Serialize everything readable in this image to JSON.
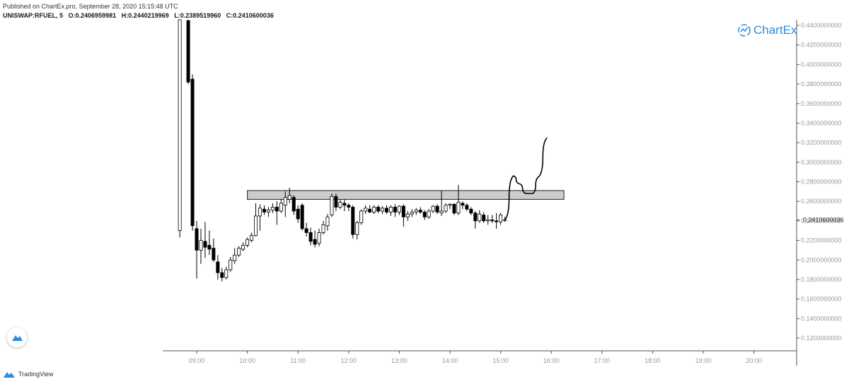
{
  "header": {
    "published": "Published on ChartEx.pro, September 28, 2020 15:15:48 UTC",
    "symbol": "UNISWAP:RFUEL, 5",
    "open_label": "O:",
    "open": "0.2406959981",
    "high_label": "H:",
    "high": "0.2440219969",
    "low_label": "L:",
    "low": "0.2389519960",
    "close_label": "C:",
    "close": "0.2410600036"
  },
  "brand": {
    "name": "ChartEx",
    "icon": "chartex-logo-icon"
  },
  "footer": {
    "tradingview": "TradingView",
    "icon": "tradingview-logo-icon"
  },
  "colors": {
    "up": "#ffffff",
    "down": "#000000",
    "wick": "#000000",
    "zone": "#cccccc",
    "arrow": "#000000",
    "axis_text": "#9598a1"
  },
  "chart_data": {
    "type": "candlestick",
    "symbol": "UNISWAP:RFUEL",
    "interval": "5",
    "price_scale": {
      "min": 0.11,
      "max": 0.45,
      "ticks": [
        0.12,
        0.14,
        0.16,
        0.18,
        0.2,
        0.22,
        0.24,
        0.26,
        0.28,
        0.3,
        0.32,
        0.34,
        0.36,
        0.38,
        0.4,
        0.42,
        0.44
      ],
      "tick_labels": [
        "0.1200000000",
        "0.1400000000",
        "0.1600000000",
        "0.1800000000",
        "0.2000000000",
        "0.2200000000",
        "0.2400000000",
        "0.2600000000",
        "0.2800000000",
        "0.3000000000",
        "0.3200000000",
        "0.3400000000",
        "0.3600000000",
        "0.3800000000",
        "0.4000000000",
        "0.4200000000",
        "0.4400000000"
      ]
    },
    "last_price_label": "0.2410600036",
    "last_price": 0.24106,
    "time_axis": {
      "labels": [
        "09:00",
        "10:00",
        "11:00",
        "12:00",
        "13:00",
        "14:00",
        "15:00",
        "16:00",
        "17:00",
        "18:00",
        "19:00",
        "20:00"
      ],
      "hours": [
        9,
        10,
        11,
        12,
        13,
        14,
        15,
        16,
        17,
        18,
        19,
        20
      ]
    },
    "grid": false,
    "candles": [
      {
        "t": "08:40",
        "o": 0.23,
        "h": 0.52,
        "l": 0.223,
        "c": 0.5
      },
      {
        "t": "08:50",
        "o": 0.445,
        "h": 0.52,
        "l": 0.38,
        "c": 0.382
      },
      {
        "t": "08:55",
        "o": 0.385,
        "h": 0.39,
        "l": 0.23,
        "c": 0.235
      },
      {
        "t": "09:00",
        "o": 0.232,
        "h": 0.24,
        "l": 0.181,
        "c": 0.21
      },
      {
        "t": "09:05",
        "o": 0.21,
        "h": 0.232,
        "l": 0.196,
        "c": 0.22
      },
      {
        "t": "09:10",
        "o": 0.219,
        "h": 0.239,
        "l": 0.202,
        "c": 0.213
      },
      {
        "t": "09:15",
        "o": 0.215,
        "h": 0.23,
        "l": 0.205,
        "c": 0.211
      },
      {
        "t": "09:20",
        "o": 0.212,
        "h": 0.222,
        "l": 0.198,
        "c": 0.2
      },
      {
        "t": "09:25",
        "o": 0.198,
        "h": 0.205,
        "l": 0.18,
        "c": 0.187
      },
      {
        "t": "09:30",
        "o": 0.187,
        "h": 0.192,
        "l": 0.178,
        "c": 0.182
      },
      {
        "t": "09:35",
        "o": 0.182,
        "h": 0.193,
        "l": 0.18,
        "c": 0.19
      },
      {
        "t": "09:40",
        "o": 0.19,
        "h": 0.203,
        "l": 0.188,
        "c": 0.2
      },
      {
        "t": "09:45",
        "o": 0.199,
        "h": 0.212,
        "l": 0.196,
        "c": 0.205
      },
      {
        "t": "09:50",
        "o": 0.205,
        "h": 0.214,
        "l": 0.203,
        "c": 0.212
      },
      {
        "t": "09:55",
        "o": 0.211,
        "h": 0.218,
        "l": 0.209,
        "c": 0.215
      },
      {
        "t": "10:00",
        "o": 0.215,
        "h": 0.223,
        "l": 0.213,
        "c": 0.221
      },
      {
        "t": "10:05",
        "o": 0.22,
        "h": 0.228,
        "l": 0.218,
        "c": 0.225
      },
      {
        "t": "10:10",
        "o": 0.225,
        "h": 0.258,
        "l": 0.224,
        "c": 0.245
      },
      {
        "t": "10:15",
        "o": 0.245,
        "h": 0.257,
        "l": 0.23,
        "c": 0.253
      },
      {
        "t": "10:20",
        "o": 0.252,
        "h": 0.256,
        "l": 0.246,
        "c": 0.249
      },
      {
        "t": "10:25",
        "o": 0.249,
        "h": 0.254,
        "l": 0.244,
        "c": 0.251
      },
      {
        "t": "10:30",
        "o": 0.251,
        "h": 0.258,
        "l": 0.248,
        "c": 0.254
      },
      {
        "t": "10:35",
        "o": 0.254,
        "h": 0.26,
        "l": 0.236,
        "c": 0.25
      },
      {
        "t": "10:40",
        "o": 0.25,
        "h": 0.262,
        "l": 0.248,
        "c": 0.258
      },
      {
        "t": "10:45",
        "o": 0.256,
        "h": 0.27,
        "l": 0.244,
        "c": 0.264
      },
      {
        "t": "10:50",
        "o": 0.262,
        "h": 0.274,
        "l": 0.258,
        "c": 0.266
      },
      {
        "t": "10:55",
        "o": 0.264,
        "h": 0.266,
        "l": 0.246,
        "c": 0.25
      },
      {
        "t": "11:00",
        "o": 0.252,
        "h": 0.256,
        "l": 0.238,
        "c": 0.242
      },
      {
        "t": "11:05",
        "o": 0.256,
        "h": 0.258,
        "l": 0.23,
        "c": 0.232
      },
      {
        "t": "11:10",
        "o": 0.232,
        "h": 0.238,
        "l": 0.224,
        "c": 0.228
      },
      {
        "t": "11:15",
        "o": 0.228,
        "h": 0.233,
        "l": 0.215,
        "c": 0.219
      },
      {
        "t": "11:20",
        "o": 0.221,
        "h": 0.23,
        "l": 0.213,
        "c": 0.216
      },
      {
        "t": "11:25",
        "o": 0.217,
        "h": 0.232,
        "l": 0.214,
        "c": 0.228
      },
      {
        "t": "11:30",
        "o": 0.228,
        "h": 0.24,
        "l": 0.226,
        "c": 0.236
      },
      {
        "t": "11:35",
        "o": 0.235,
        "h": 0.247,
        "l": 0.23,
        "c": 0.244
      },
      {
        "t": "11:40",
        "o": 0.246,
        "h": 0.268,
        "l": 0.244,
        "c": 0.265
      },
      {
        "t": "11:45",
        "o": 0.265,
        "h": 0.268,
        "l": 0.25,
        "c": 0.254
      },
      {
        "t": "11:50",
        "o": 0.254,
        "h": 0.262,
        "l": 0.252,
        "c": 0.259
      },
      {
        "t": "11:55",
        "o": 0.258,
        "h": 0.262,
        "l": 0.25,
        "c": 0.256
      },
      {
        "t": "12:00",
        "o": 0.256,
        "h": 0.258,
        "l": 0.25,
        "c": 0.254
      },
      {
        "t": "12:05",
        "o": 0.254,
        "h": 0.256,
        "l": 0.222,
        "c": 0.226
      },
      {
        "t": "12:10",
        "o": 0.226,
        "h": 0.24,
        "l": 0.221,
        "c": 0.238
      },
      {
        "t": "12:15",
        "o": 0.238,
        "h": 0.252,
        "l": 0.236,
        "c": 0.25
      },
      {
        "t": "12:20",
        "o": 0.25,
        "h": 0.256,
        "l": 0.247,
        "c": 0.253
      },
      {
        "t": "12:25",
        "o": 0.252,
        "h": 0.256,
        "l": 0.248,
        "c": 0.249
      },
      {
        "t": "12:30",
        "o": 0.249,
        "h": 0.256,
        "l": 0.247,
        "c": 0.254
      },
      {
        "t": "12:35",
        "o": 0.254,
        "h": 0.256,
        "l": 0.248,
        "c": 0.25
      },
      {
        "t": "12:40",
        "o": 0.25,
        "h": 0.255,
        "l": 0.247,
        "c": 0.253
      },
      {
        "t": "12:45",
        "o": 0.253,
        "h": 0.256,
        "l": 0.247,
        "c": 0.249
      },
      {
        "t": "12:50",
        "o": 0.249,
        "h": 0.256,
        "l": 0.245,
        "c": 0.254
      },
      {
        "t": "12:55",
        "o": 0.254,
        "h": 0.257,
        "l": 0.244,
        "c": 0.249
      },
      {
        "t": "13:00",
        "o": 0.249,
        "h": 0.256,
        "l": 0.246,
        "c": 0.255
      },
      {
        "t": "13:05",
        "o": 0.255,
        "h": 0.257,
        "l": 0.234,
        "c": 0.244
      },
      {
        "t": "13:10",
        "o": 0.244,
        "h": 0.25,
        "l": 0.24,
        "c": 0.247
      },
      {
        "t": "13:15",
        "o": 0.247,
        "h": 0.252,
        "l": 0.244,
        "c": 0.249
      },
      {
        "t": "13:20",
        "o": 0.249,
        "h": 0.253,
        "l": 0.246,
        "c": 0.251
      },
      {
        "t": "13:25",
        "o": 0.251,
        "h": 0.254,
        "l": 0.247,
        "c": 0.249
      },
      {
        "t": "13:30",
        "o": 0.249,
        "h": 0.251,
        "l": 0.241,
        "c": 0.244
      },
      {
        "t": "13:35",
        "o": 0.244,
        "h": 0.252,
        "l": 0.242,
        "c": 0.25
      },
      {
        "t": "13:40",
        "o": 0.25,
        "h": 0.256,
        "l": 0.248,
        "c": 0.255
      },
      {
        "t": "13:45",
        "o": 0.255,
        "h": 0.257,
        "l": 0.247,
        "c": 0.249
      },
      {
        "t": "13:50",
        "o": 0.248,
        "h": 0.271,
        "l": 0.245,
        "c": 0.25
      },
      {
        "t": "13:55",
        "o": 0.25,
        "h": 0.258,
        "l": 0.248,
        "c": 0.256
      },
      {
        "t": "14:00",
        "o": 0.256,
        "h": 0.258,
        "l": 0.252,
        "c": 0.257
      },
      {
        "t": "14:05",
        "o": 0.257,
        "h": 0.258,
        "l": 0.246,
        "c": 0.248
      },
      {
        "t": "14:10",
        "o": 0.248,
        "h": 0.277,
        "l": 0.246,
        "c": 0.259
      },
      {
        "t": "14:15",
        "o": 0.258,
        "h": 0.26,
        "l": 0.252,
        "c": 0.256
      },
      {
        "t": "14:20",
        "o": 0.256,
        "h": 0.258,
        "l": 0.25,
        "c": 0.252
      },
      {
        "t": "14:25",
        "o": 0.252,
        "h": 0.254,
        "l": 0.246,
        "c": 0.248
      },
      {
        "t": "14:30",
        "o": 0.248,
        "h": 0.25,
        "l": 0.232,
        "c": 0.24
      },
      {
        "t": "14:35",
        "o": 0.24,
        "h": 0.251,
        "l": 0.238,
        "c": 0.247
      },
      {
        "t": "14:40",
        "o": 0.246,
        "h": 0.249,
        "l": 0.238,
        "c": 0.24
      },
      {
        "t": "14:45",
        "o": 0.24,
        "h": 0.246,
        "l": 0.236,
        "c": 0.241
      },
      {
        "t": "14:50",
        "o": 0.241,
        "h": 0.246,
        "l": 0.238,
        "c": 0.24
      },
      {
        "t": "14:55",
        "o": 0.24,
        "h": 0.248,
        "l": 0.232,
        "c": 0.239
      },
      {
        "t": "15:00",
        "o": 0.239,
        "h": 0.248,
        "l": 0.236,
        "c": 0.246
      },
      {
        "t": "15:05",
        "o": 0.2407,
        "h": 0.244,
        "l": 0.239,
        "c": 0.2411
      }
    ],
    "annotations": [
      {
        "type": "rectangle",
        "label": "",
        "t_start": "10:00",
        "t_end": "16:15",
        "price_top": 0.271,
        "price_bottom": 0.262
      },
      {
        "type": "projection-curve",
        "points": [
          [
            "15:05",
            0.2411
          ],
          [
            "15:15",
            0.286
          ],
          [
            "15:22",
            0.278
          ],
          [
            "15:30",
            0.268
          ],
          [
            "15:38",
            0.268
          ],
          [
            "15:45",
            0.285
          ],
          [
            "15:55",
            0.325
          ]
        ]
      }
    ]
  }
}
